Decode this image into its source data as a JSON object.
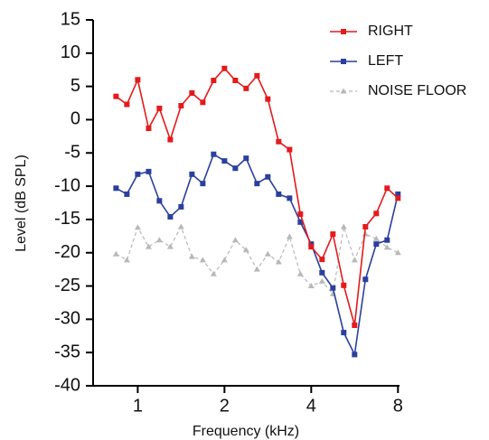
{
  "chart_data": {
    "type": "line",
    "x_label": "Frequency (kHz)",
    "y_label": "Level (dB SPL)",
    "x_scale": "log",
    "xlim": [
      0.7,
      8.1
    ],
    "xticks": [
      1,
      2,
      4,
      8
    ],
    "ylim": [
      -40,
      15
    ],
    "yticks": [
      -40,
      -35,
      -30,
      -25,
      -20,
      -15,
      -10,
      -5,
      0,
      5,
      10,
      15
    ],
    "legend": "upper right",
    "x": [
      0.841,
      0.917,
      1,
      1.091,
      1.189,
      1.297,
      1.414,
      1.542,
      1.682,
      1.834,
      2,
      2.181,
      2.378,
      2.594,
      2.828,
      3.084,
      3.364,
      3.668,
      4,
      4.362,
      4.757,
      5.187,
      5.657,
      6.169,
      6.727,
      7.336,
      8
    ],
    "series": [
      {
        "name": "RIGHT",
        "color": "#e41a1c",
        "marker": "square",
        "dashed": false,
        "values": [
          3.5,
          2.3,
          6.0,
          -1.3,
          1.7,
          -3,
          2.1,
          4.0,
          2.6,
          5.9,
          7.7,
          5.9,
          4.7,
          6.6,
          3.1,
          -3.3,
          -4.5,
          -14.2,
          -19.1,
          -21,
          -17.2,
          -24.9,
          -30.9,
          -16.1,
          -14.1,
          -10.3,
          -11.8
        ]
      },
      {
        "name": "LEFT",
        "color": "#2b3f9e",
        "marker": "square",
        "dashed": false,
        "values": [
          -10.3,
          -11.2,
          -8.2,
          -7.8,
          -12.2,
          -14.6,
          -13.1,
          -8.2,
          -9.6,
          -5.2,
          -6.2,
          -7.3,
          -5.8,
          -9.6,
          -8.6,
          -11.2,
          -11.8,
          -15.4,
          -18.7,
          -23,
          -25.3,
          -32,
          -35.3,
          -24,
          -18.7,
          -18.1,
          -11.2
        ]
      },
      {
        "name": "NOISE FLOOR",
        "color": "#b8b8b8",
        "marker": "triangle",
        "dashed": true,
        "values": [
          -20.2,
          -21.1,
          -16.2,
          -19.1,
          -18.1,
          -19.1,
          -16.1,
          -20.6,
          -21.1,
          -23.2,
          -21.1,
          -18.1,
          -19.6,
          -22.5,
          -20.2,
          -21.4,
          -17.6,
          -23.2,
          -25,
          -24.3,
          -26.2,
          -16.1,
          -21.1,
          -17.2,
          -17.9,
          -19.2,
          -20
        ]
      }
    ]
  }
}
